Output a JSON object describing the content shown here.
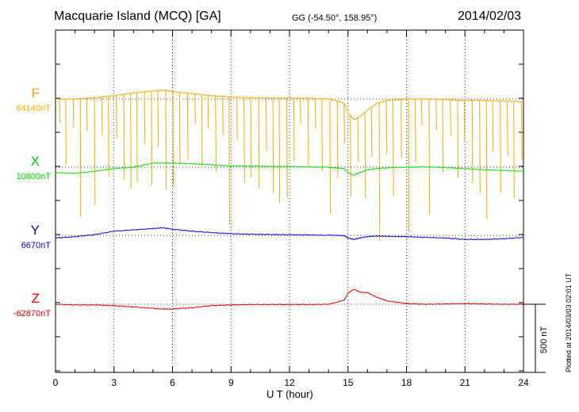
{
  "header": {
    "title": "Macquarie Island (MCQ)  [GA]",
    "coords": "GG (-54.50°, 158.95°)",
    "date": "2014/02/03"
  },
  "footer": {
    "plotted": "Plotted at 2014/03/03 02:01  UT"
  },
  "chart_data": {
    "type": "line",
    "title": "Macquarie Island (MCQ)  [GA]",
    "xlabel": "U T (hour)",
    "ylabel": "",
    "xlim": [
      0,
      24
    ],
    "xticks": [
      0,
      3,
      6,
      9,
      12,
      15,
      18,
      21,
      24
    ],
    "xtick_labels": [
      "0",
      "3",
      "6",
      "9",
      "12",
      "15",
      "18",
      "21",
      "24"
    ],
    "grid": true,
    "scale_bar": {
      "value": 500,
      "unit": "nT",
      "label": "500 nT"
    },
    "series": [
      {
        "name": "F",
        "baseline_label": "64140nT",
        "baseline": 64140,
        "color": "#f5a800",
        "spikes": true,
        "x": [
          0,
          1,
          2,
          3,
          4,
          5,
          5.5,
          6,
          7,
          8,
          9,
          10,
          11,
          12,
          13,
          14,
          14.8,
          15.0,
          15.3,
          15.6,
          16,
          16.5,
          17,
          18,
          19,
          20,
          21,
          22,
          23,
          24
        ],
        "y": [
          64140,
          64140,
          64150,
          64165,
          64185,
          64200,
          64205,
          64195,
          64180,
          64165,
          64155,
          64150,
          64148,
          64146,
          64145,
          64140,
          64110,
          64040,
          63990,
          64010,
          64060,
          64110,
          64130,
          64140,
          64140,
          64136,
          64130,
          64130,
          64125,
          64120
        ]
      },
      {
        "name": "X",
        "baseline_label": "10800nT",
        "baseline": 10800,
        "color": "#00dd00",
        "x": [
          0,
          1,
          2,
          3,
          4,
          5,
          5.5,
          6,
          7,
          8,
          9,
          10,
          11,
          12,
          13,
          14,
          14.8,
          15.0,
          15.3,
          15.6,
          16,
          16.5,
          17,
          18,
          19,
          20,
          21,
          22,
          23,
          24
        ],
        "y": [
          10760,
          10755,
          10770,
          10790,
          10800,
          10830,
          10830,
          10830,
          10825,
          10818,
          10810,
          10808,
          10805,
          10805,
          10802,
          10800,
          10790,
          10760,
          10740,
          10760,
          10780,
          10790,
          10795,
          10800,
          10802,
          10798,
          10790,
          10780,
          10775,
          10770
        ]
      },
      {
        "name": "Y",
        "baseline_label": "6670nT",
        "baseline": 6670,
        "color": "#0000dd",
        "x": [
          0,
          1,
          2,
          3,
          4,
          5,
          5.5,
          6,
          7,
          8,
          9,
          10,
          11,
          12,
          13,
          14,
          14.8,
          15.0,
          15.3,
          15.6,
          16,
          16.5,
          17,
          18,
          19,
          20,
          21,
          22,
          23,
          24
        ],
        "y": [
          6650,
          6660,
          6675,
          6700,
          6710,
          6720,
          6725,
          6715,
          6700,
          6690,
          6682,
          6678,
          6676,
          6674,
          6673,
          6670,
          6668,
          6650,
          6640,
          6650,
          6660,
          6665,
          6662,
          6660,
          6655,
          6650,
          6640,
          6640,
          6645,
          6655
        ]
      },
      {
        "name": "Z",
        "baseline_label": "-62870nT",
        "baseline": -62870,
        "color": "#dd0000",
        "x": [
          0,
          1,
          2,
          3,
          4,
          5,
          5.5,
          6,
          7,
          8,
          9,
          10,
          11,
          12,
          13,
          14,
          14.8,
          15.0,
          15.3,
          15.6,
          16,
          16.5,
          17,
          18,
          19,
          20,
          21,
          22,
          23,
          24
        ],
        "y": [
          -62870,
          -62875,
          -62875,
          -62880,
          -62890,
          -62900,
          -62905,
          -62905,
          -62895,
          -62880,
          -62875,
          -62872,
          -62872,
          -62872,
          -62872,
          -62870,
          -62840,
          -62790,
          -62760,
          -62780,
          -62785,
          -62820,
          -62845,
          -62865,
          -62870,
          -62868,
          -62865,
          -62868,
          -62870,
          -62870
        ]
      }
    ]
  }
}
